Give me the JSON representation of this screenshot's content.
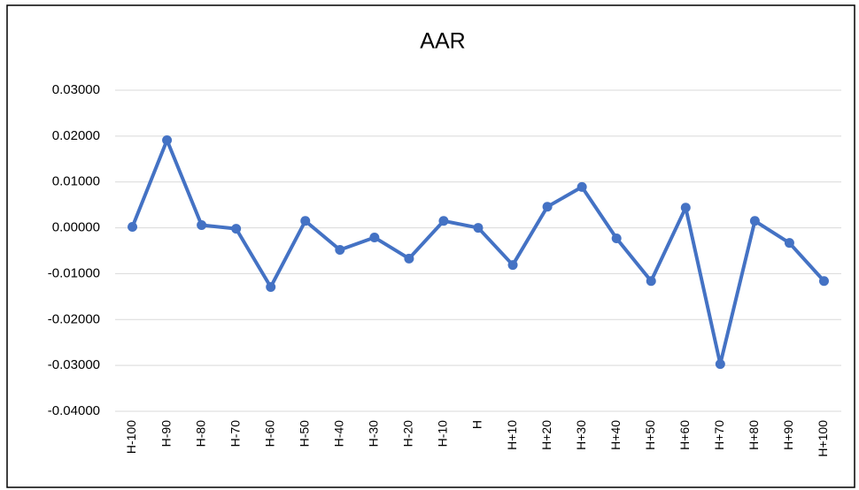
{
  "chart_data": {
    "type": "line",
    "title": "AAR",
    "categories": [
      "H-100",
      "H-90",
      "H-80",
      "H-70",
      "H-60",
      "H-50",
      "H-40",
      "H-30",
      "H-20",
      "H-10",
      "H",
      "H+10",
      "H+20",
      "H+30",
      "H+40",
      "H+50",
      "H+60",
      "H+70",
      "H+80",
      "H+90",
      "H+100"
    ],
    "series": [
      {
        "name": "AAR",
        "color": "#4472c4",
        "values": [
          0.0002,
          0.0191,
          0.0006,
          -0.0002,
          -0.0129,
          0.0015,
          -0.0048,
          -0.0021,
          -0.0067,
          0.0015,
          0.0,
          -0.0081,
          0.0046,
          0.0089,
          -0.0023,
          -0.0116,
          0.0044,
          -0.0297,
          0.0015,
          -0.0033,
          -0.0116
        ]
      }
    ],
    "ylim": [
      -0.04,
      0.03
    ],
    "yticks": [
      {
        "value": -0.04,
        "label": "-0.04000"
      },
      {
        "value": -0.03,
        "label": "-0.03000"
      },
      {
        "value": -0.02,
        "label": "-0.02000"
      },
      {
        "value": -0.01,
        "label": "-0.01000"
      },
      {
        "value": 0,
        "label": "0.00000"
      },
      {
        "value": 0.01,
        "label": "0.01000"
      },
      {
        "value": 0.02,
        "label": "0.02000"
      },
      {
        "value": 0.03,
        "label": "0.03000"
      }
    ],
    "grid": true
  }
}
